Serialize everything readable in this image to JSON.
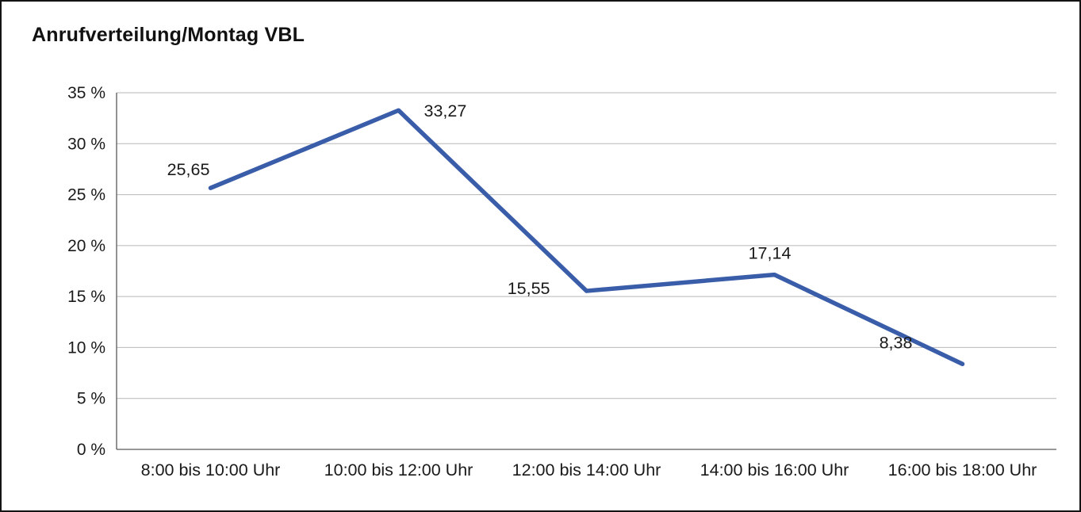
{
  "title": "Anrufverteilung/Montag VBL",
  "colors": {
    "line": "#3a5da9",
    "grid": "#b7b7b7",
    "axis": "#595959",
    "frame": "#141414",
    "text": "#1a1a1a"
  },
  "chart_data": {
    "type": "line",
    "title": "Anrufverteilung/Montag VBL",
    "categories": [
      "8:00 bis 10:00 Uhr",
      "10:00 bis 12:00 Uhr",
      "12:00 bis 14:00 Uhr",
      "14:00 bis 16:00 Uhr",
      "16:00 bis 18:00 Uhr"
    ],
    "values": [
      25.65,
      33.27,
      15.55,
      17.14,
      8.38
    ],
    "value_labels": [
      "25,65",
      "33,27",
      "15,55",
      "17,14",
      "8,38"
    ],
    "xlabel": "",
    "ylabel": "",
    "ylim": [
      0,
      35
    ],
    "ytick_step": 5,
    "ytick_labels": [
      "0 %",
      "5 %",
      "10 %",
      "15 %",
      "20 %",
      "25 %",
      "30 %",
      "35 %"
    ],
    "grid": true,
    "legend": "none"
  }
}
